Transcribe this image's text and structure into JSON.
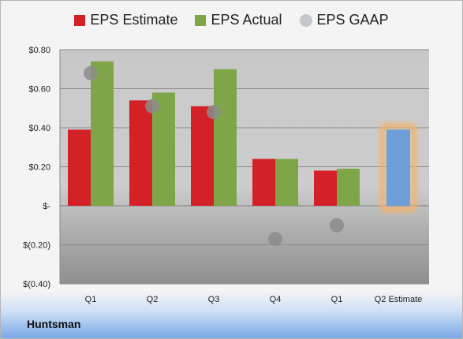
{
  "chart_data": {
    "type": "bar",
    "categories": [
      "Q1",
      "Q2",
      "Q3",
      "Q4",
      "Q1",
      "Q2 Estimate"
    ],
    "series": [
      {
        "name": "EPS Estimate",
        "color": "#d42027",
        "values": [
          0.39,
          0.54,
          0.51,
          0.24,
          0.18,
          null
        ]
      },
      {
        "name": "EPS Actual",
        "color": "#7ea648",
        "values": [
          0.74,
          0.58,
          0.7,
          0.24,
          0.19,
          null
        ]
      },
      {
        "name": "EPS GAAP",
        "color": "#b8bcc2",
        "values": [
          0.68,
          0.51,
          0.48,
          -0.17,
          -0.1,
          null
        ]
      }
    ],
    "estimate": {
      "category": "Q2 Estimate",
      "value": 0.39,
      "color": "#6f9fd8",
      "glow": "#f4b26b"
    },
    "yticks": [
      0.8,
      0.6,
      0.4,
      0.2,
      0,
      -0.2,
      -0.4
    ],
    "ytick_labels": [
      "$0.80",
      "$0.60",
      "$0.40",
      "$0.20",
      "$-",
      "$(0.20)",
      "$(0.40)"
    ],
    "ylim": [
      -0.4,
      0.8
    ],
    "legend_position": "top",
    "grid": true
  },
  "company": "Huntsman"
}
